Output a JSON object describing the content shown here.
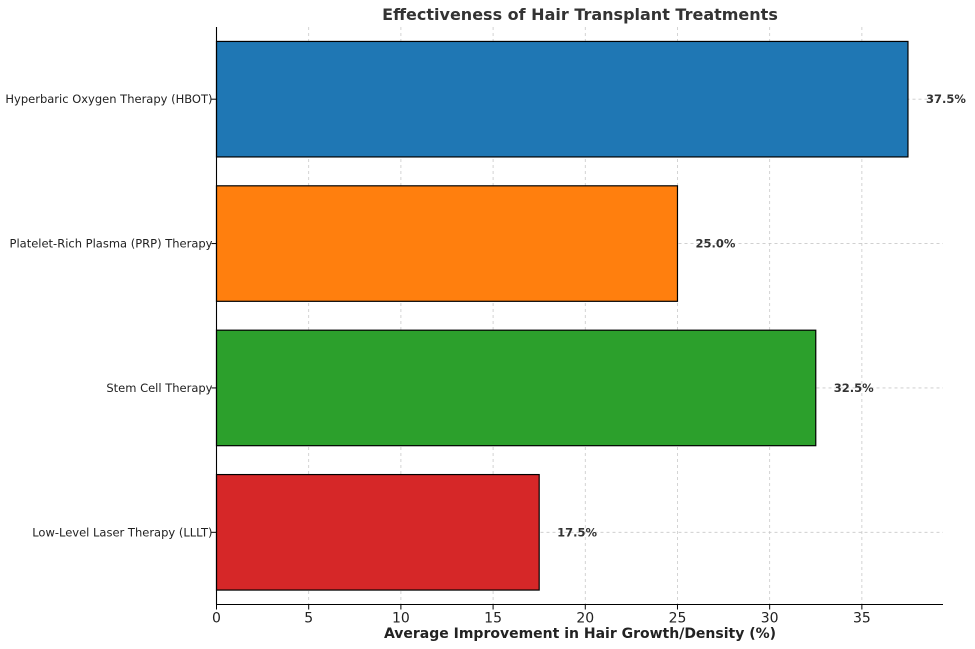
{
  "chart_data": {
    "type": "bar",
    "orientation": "horizontal",
    "title": "Effectiveness of Hair Transplant Treatments",
    "xlabel": "Average Improvement in Hair Growth/Density (%)",
    "ylabel": "",
    "xlim": [
      0,
      39.4
    ],
    "xticks": [
      0,
      5,
      10,
      15,
      20,
      25,
      30,
      35
    ],
    "grid": true,
    "categories": [
      "Hyperbaric Oxygen Therapy (HBOT)",
      "Platelet-Rich Plasma (PRP) Therapy",
      "Stem Cell Therapy",
      "Low-Level Laser Therapy (LLLT)"
    ],
    "values": [
      37.5,
      25.0,
      32.5,
      17.5
    ],
    "value_labels": [
      "37.5%",
      "25.0%",
      "32.5%",
      "17.5%"
    ],
    "colors": [
      "#1f77b4",
      "#ff7f0e",
      "#2ca02c",
      "#d62728"
    ]
  }
}
